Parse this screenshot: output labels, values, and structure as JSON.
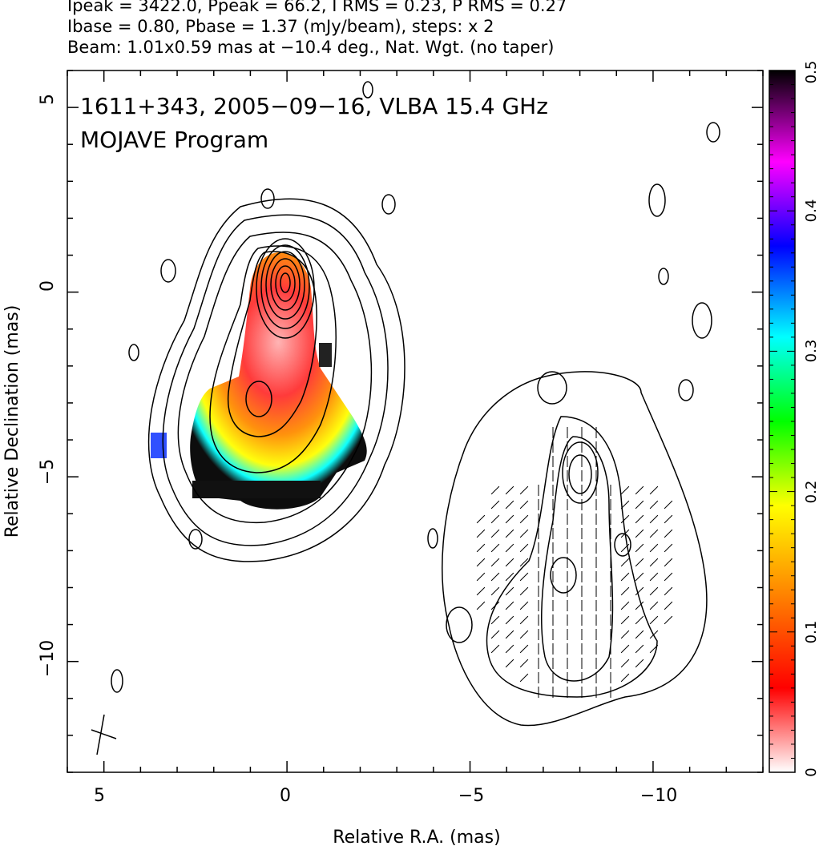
{
  "header": {
    "line1": "Ipeak = 3422.0, Ppeak = 66.2, I RMS = 0.23, P RMS = 0.27",
    "line2": "Ibase = 0.80, Pbase = 1.37 (mJy/beam), steps: x 2",
    "line3": "Beam: 1.01x0.59 mas at −10.4 deg., Nat. Wgt. (no taper)"
  },
  "plot_text": {
    "source_line": "1611+343, 2005−09−16, VLBA 15.4 GHz",
    "program_line": "MOJAVE Program"
  },
  "chart_data": {
    "type": "heatmap",
    "xlabel": "Relative R.A. (mas)",
    "ylabel": "Relative Declination (mas)",
    "xlim": [
      6,
      -13
    ],
    "ylim": [
      -13,
      6
    ],
    "x_ticks": [
      {
        "value": 5,
        "label": "5"
      },
      {
        "value": 0,
        "label": "0"
      },
      {
        "value": -5,
        "label": "−5"
      },
      {
        "value": -10,
        "label": "−10"
      }
    ],
    "y_ticks": [
      {
        "value": 5,
        "label": "5"
      },
      {
        "value": 0,
        "label": "0"
      },
      {
        "value": -5,
        "label": "−5"
      },
      {
        "value": -10,
        "label": "−10"
      }
    ],
    "colorbar": {
      "range": [
        0,
        0.5
      ],
      "ticks": [
        {
          "value": 0,
          "label": "0"
        },
        {
          "value": 0.1,
          "label": "0.1"
        },
        {
          "value": 0.2,
          "label": "0.2"
        },
        {
          "value": 0.3,
          "label": "0.3"
        },
        {
          "value": 0.4,
          "label": "0.4"
        },
        {
          "value": 0.5,
          "label": "0.5"
        }
      ],
      "stops": [
        "#ffffff",
        "#ff0000",
        "#ff8000",
        "#ffff00",
        "#00ff00",
        "#00ffff",
        "#0000ff",
        "#ff00ff",
        "#000000"
      ]
    },
    "contours_total_intensity": {
      "center": [
        0.0,
        0.0
      ],
      "levels": 13
    },
    "contours_polarized": {
      "center": [
        -7.8,
        -5.3
      ],
      "offset_panel": true
    },
    "beam": {
      "major": 1.01,
      "minor": 0.59,
      "pa_deg": -10.4,
      "center": [
        5.0,
        -12.0
      ]
    }
  }
}
